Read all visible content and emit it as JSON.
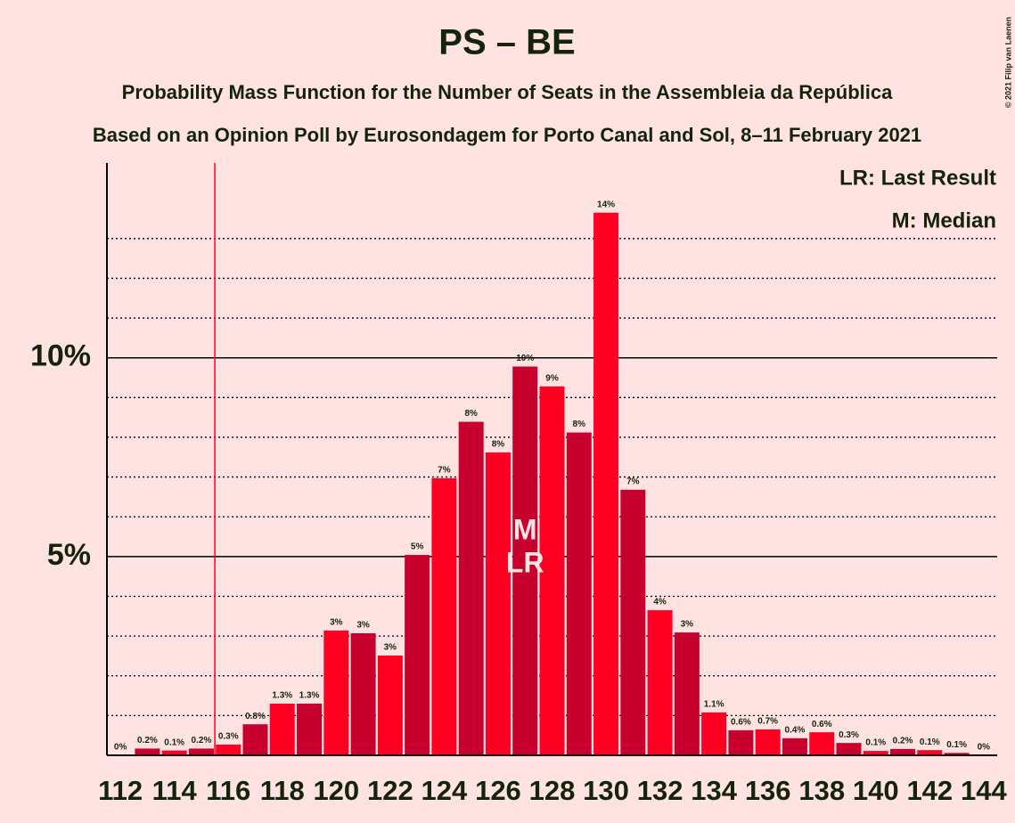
{
  "chart_data": {
    "type": "bar",
    "title": "PS – BE",
    "subtitle": "Probability Mass Function for the Number of Seats in the Assembleia da República",
    "subtitle2": "Based on an Opinion Poll by Eurosondagem for Porto Canal and Sol, 8–11 February 2021",
    "copyright": "© 2021 Filip van Laenen",
    "legend": [
      "LR: Last Result",
      "M: Median"
    ],
    "categories": [
      "112",
      null,
      "114",
      null,
      "116",
      null,
      "118",
      null,
      "120",
      null,
      "122",
      null,
      "124",
      null,
      "126",
      null,
      "128",
      null,
      "130",
      null,
      "132",
      null,
      "134",
      null,
      "136",
      null,
      "138",
      null,
      "140",
      null,
      "142",
      null,
      "144"
    ],
    "values": [
      0,
      0.17,
      0.12,
      0.17,
      0.27,
      0.78,
      1.3,
      1.3,
      3.14,
      3.07,
      2.51,
      5.04,
      6.97,
      8.39,
      7.62,
      9.78,
      9.28,
      8.12,
      13.65,
      6.68,
      3.65,
      3.09,
      1.08,
      0.63,
      0.65,
      0.43,
      0.58,
      0.31,
      0.11,
      0.16,
      0.13,
      0.06,
      0
    ],
    "value_labels": [
      "0%",
      "0.2%",
      "0.1%",
      "0.2%",
      "0.3%",
      "0.8%",
      "1.3%",
      "1.3%",
      "3%",
      "3%",
      "3%",
      "5%",
      "7%",
      "8%",
      "8%",
      "10%",
      "9%",
      "8%",
      "14%",
      "7%",
      "4%",
      "3%",
      "1.1%",
      "0.6%",
      "0.7%",
      "0.4%",
      "0.6%",
      "0.3%",
      "0.1%",
      "0.2%",
      "0.1%",
      "0.1%",
      "0%"
    ],
    "colors": [
      "#ff0022",
      "#c8002e"
    ],
    "ylim": [
      0,
      14.9
    ],
    "yticks": [
      {
        "value": 5,
        "label": "5%"
      },
      {
        "value": 10,
        "label": "10%"
      }
    ],
    "minor_yticks": [
      1,
      2,
      3,
      4,
      6,
      7,
      8,
      9,
      11,
      12,
      13
    ],
    "majority_index": 4,
    "median_index": 15,
    "median_label": "M",
    "last_result_index": 15,
    "last_result_label": "LR"
  }
}
